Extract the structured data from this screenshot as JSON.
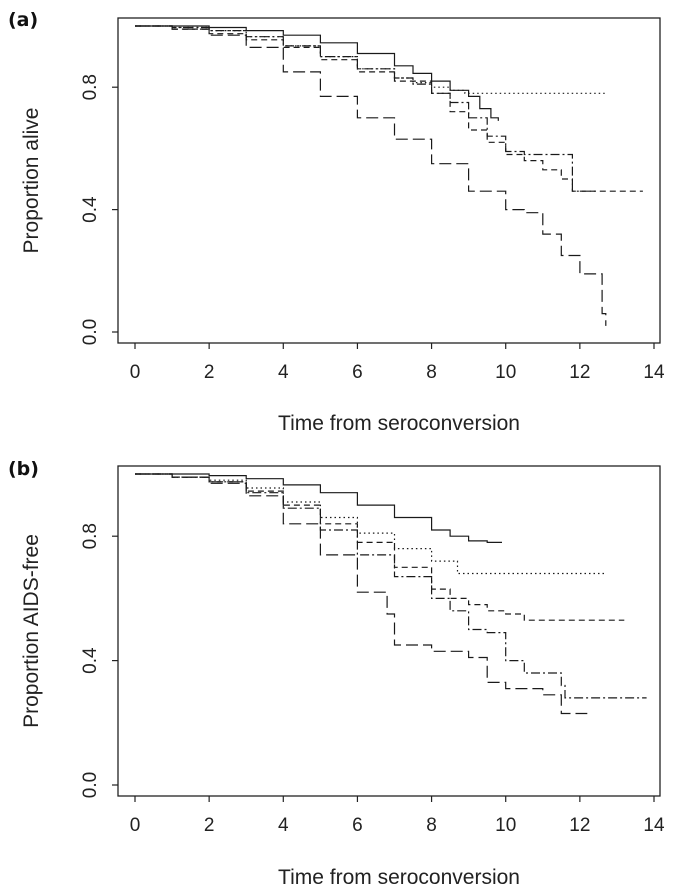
{
  "chart_data": [
    {
      "type": "line",
      "panel_label": "(a)",
      "xlabel": "Time from seroconversion",
      "ylabel": "Proportion alive",
      "xlim": [
        0,
        14
      ],
      "ylim": [
        0,
        1
      ],
      "xticks": [
        "0",
        "2",
        "4",
        "6",
        "8",
        "10",
        "12",
        "14"
      ],
      "yticks": [
        "0.0",
        "0.4",
        "0.8"
      ],
      "ytick_values": [
        0.0,
        0.4,
        0.8
      ],
      "grid": false,
      "series": [
        {
          "style": "solid",
          "points": [
            [
              0,
              1.0
            ],
            [
              1,
              1.0
            ],
            [
              2,
              0.995
            ],
            [
              3,
              0.985
            ],
            [
              4,
              0.97
            ],
            [
              5,
              0.945
            ],
            [
              6,
              0.91
            ],
            [
              7,
              0.87
            ],
            [
              7.5,
              0.845
            ],
            [
              8,
              0.82
            ],
            [
              8.5,
              0.79
            ],
            [
              9,
              0.77
            ],
            [
              9.3,
              0.73
            ],
            [
              9.6,
              0.7
            ],
            [
              9.8,
              0.69
            ]
          ]
        },
        {
          "style": "dotted",
          "points": [
            [
              0,
              1.0
            ],
            [
              1,
              0.995
            ],
            [
              2,
              0.985
            ],
            [
              3,
              0.965
            ],
            [
              4,
              0.935
            ],
            [
              5,
              0.9
            ],
            [
              6,
              0.86
            ],
            [
              7,
              0.83
            ],
            [
              7.5,
              0.815
            ],
            [
              8,
              0.8
            ],
            [
              8.5,
              0.79
            ],
            [
              8.9,
              0.78
            ],
            [
              12.7,
              0.78
            ]
          ]
        },
        {
          "style": "dashed",
          "points": [
            [
              0,
              1.0
            ],
            [
              1,
              0.99
            ],
            [
              2,
              0.975
            ],
            [
              3,
              0.955
            ],
            [
              4,
              0.93
            ],
            [
              5,
              0.89
            ],
            [
              6,
              0.85
            ],
            [
              7,
              0.82
            ],
            [
              8,
              0.78
            ],
            [
              8.5,
              0.72
            ],
            [
              9,
              0.66
            ],
            [
              9.5,
              0.62
            ],
            [
              10,
              0.58
            ],
            [
              10.5,
              0.56
            ],
            [
              11,
              0.53
            ],
            [
              11.5,
              0.5
            ],
            [
              11.8,
              0.46
            ],
            [
              13.7,
              0.46
            ]
          ]
        },
        {
          "style": "dashdot",
          "points": [
            [
              0,
              1.0
            ],
            [
              1,
              0.995
            ],
            [
              2,
              0.985
            ],
            [
              3,
              0.965
            ],
            [
              4,
              0.935
            ],
            [
              5,
              0.9
            ],
            [
              6,
              0.86
            ],
            [
              7,
              0.83
            ],
            [
              7.5,
              0.81
            ],
            [
              8,
              0.78
            ],
            [
              8.5,
              0.75
            ],
            [
              9,
              0.7
            ],
            [
              9.5,
              0.64
            ],
            [
              10,
              0.59
            ],
            [
              10.5,
              0.58
            ],
            [
              11.8,
              0.58
            ],
            [
              11.8,
              0.46
            ],
            [
              12.5,
              0.46
            ]
          ]
        },
        {
          "style": "longdash",
          "points": [
            [
              0,
              1.0
            ],
            [
              1,
              0.99
            ],
            [
              2,
              0.97
            ],
            [
              3,
              0.93
            ],
            [
              4,
              0.85
            ],
            [
              5,
              0.77
            ],
            [
              6,
              0.7
            ],
            [
              7,
              0.63
            ],
            [
              8,
              0.55
            ],
            [
              9,
              0.46
            ],
            [
              10,
              0.4
            ],
            [
              10.5,
              0.39
            ],
            [
              11,
              0.32
            ],
            [
              11.5,
              0.25
            ],
            [
              12,
              0.19
            ],
            [
              12.5,
              0.19
            ],
            [
              12.6,
              0.06
            ],
            [
              12.7,
              0.02
            ]
          ]
        }
      ]
    },
    {
      "type": "line",
      "panel_label": "(b)",
      "xlabel": "Time from seroconversion",
      "ylabel": "Proportion AIDS-free",
      "xlim": [
        0,
        14
      ],
      "ylim": [
        0,
        1
      ],
      "xticks": [
        "0",
        "2",
        "4",
        "6",
        "8",
        "10",
        "12",
        "14"
      ],
      "yticks": [
        "0.0",
        "0.4",
        "0.8"
      ],
      "ytick_values": [
        0.0,
        0.4,
        0.8
      ],
      "grid": false,
      "series": [
        {
          "style": "solid",
          "points": [
            [
              0,
              1.0
            ],
            [
              1,
              1.0
            ],
            [
              2,
              0.995
            ],
            [
              3,
              0.985
            ],
            [
              4,
              0.965
            ],
            [
              5,
              0.94
            ],
            [
              6,
              0.9
            ],
            [
              7,
              0.86
            ],
            [
              8,
              0.82
            ],
            [
              8.5,
              0.8
            ],
            [
              9,
              0.785
            ],
            [
              9.5,
              0.78
            ],
            [
              9.9,
              0.78
            ]
          ]
        },
        {
          "style": "dotted",
          "points": [
            [
              0,
              1.0
            ],
            [
              1,
              0.99
            ],
            [
              2,
              0.98
            ],
            [
              3,
              0.955
            ],
            [
              4,
              0.91
            ],
            [
              5,
              0.86
            ],
            [
              6,
              0.81
            ],
            [
              7,
              0.76
            ],
            [
              8,
              0.72
            ],
            [
              8.7,
              0.68
            ],
            [
              12.7,
              0.68
            ]
          ]
        },
        {
          "style": "dashed",
          "points": [
            [
              0,
              1.0
            ],
            [
              1,
              0.99
            ],
            [
              2,
              0.975
            ],
            [
              3,
              0.945
            ],
            [
              4,
              0.9
            ],
            [
              5,
              0.84
            ],
            [
              6,
              0.78
            ],
            [
              7,
              0.7
            ],
            [
              8,
              0.63
            ],
            [
              8.5,
              0.6
            ],
            [
              9,
              0.58
            ],
            [
              9.5,
              0.56
            ],
            [
              10,
              0.55
            ],
            [
              10.5,
              0.53
            ],
            [
              13.2,
              0.53
            ]
          ]
        },
        {
          "style": "dashdot",
          "points": [
            [
              0,
              1.0
            ],
            [
              1,
              0.99
            ],
            [
              2,
              0.975
            ],
            [
              3,
              0.94
            ],
            [
              4,
              0.89
            ],
            [
              5,
              0.82
            ],
            [
              6,
              0.74
            ],
            [
              7,
              0.67
            ],
            [
              8,
              0.6
            ],
            [
              8.5,
              0.56
            ],
            [
              9,
              0.5
            ],
            [
              9.5,
              0.49
            ],
            [
              10,
              0.4
            ],
            [
              10.5,
              0.36
            ],
            [
              11.5,
              0.32
            ],
            [
              11.6,
              0.28
            ],
            [
              13.8,
              0.28
            ]
          ]
        },
        {
          "style": "longdash",
          "points": [
            [
              0,
              1.0
            ],
            [
              1,
              0.99
            ],
            [
              2,
              0.97
            ],
            [
              3,
              0.93
            ],
            [
              4,
              0.84
            ],
            [
              5,
              0.74
            ],
            [
              6,
              0.62
            ],
            [
              6.8,
              0.55
            ],
            [
              7,
              0.45
            ],
            [
              8,
              0.43
            ],
            [
              9,
              0.41
            ],
            [
              9.5,
              0.33
            ],
            [
              10,
              0.31
            ],
            [
              11,
              0.29
            ],
            [
              11.5,
              0.23
            ],
            [
              12.2,
              0.23
            ]
          ]
        }
      ]
    }
  ]
}
